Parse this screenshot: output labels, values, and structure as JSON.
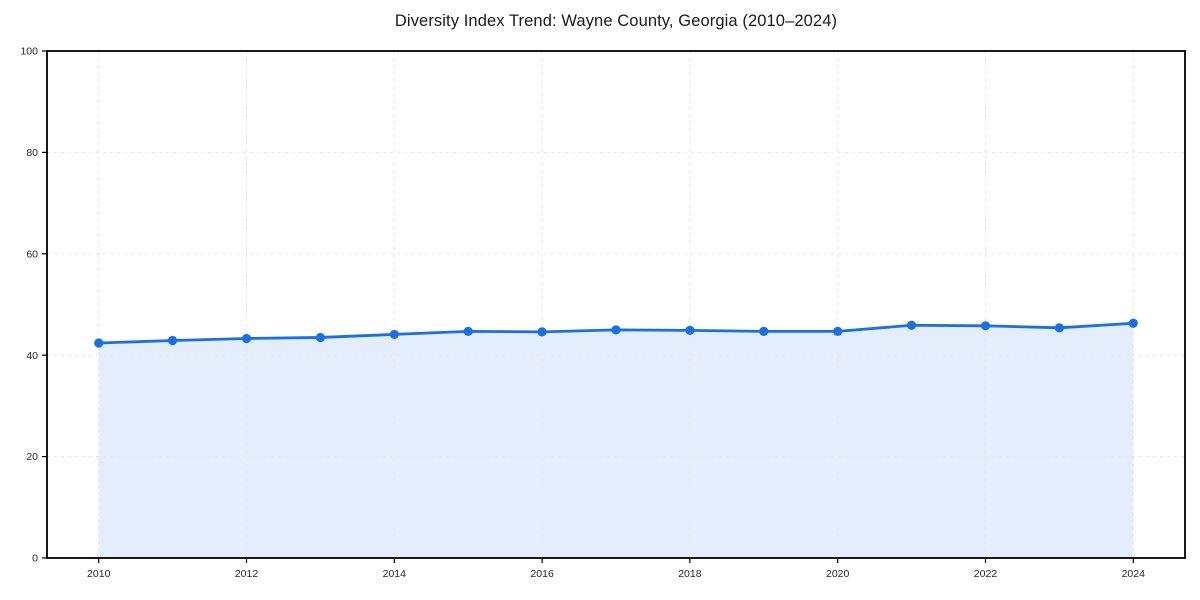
{
  "chart_data": {
    "type": "line",
    "title": "Diversity Index Trend: Wayne County, Georgia (2010–2024)",
    "xlabel": "",
    "ylabel": "",
    "x": [
      2010,
      2011,
      2012,
      2013,
      2014,
      2015,
      2016,
      2017,
      2018,
      2019,
      2020,
      2021,
      2022,
      2023,
      2024
    ],
    "values": [
      42.4,
      42.9,
      43.3,
      43.5,
      44.1,
      44.7,
      44.6,
      45.0,
      44.9,
      44.7,
      44.7,
      45.9,
      45.8,
      45.4,
      46.3
    ],
    "area_fill": true,
    "markers": true,
    "grid": true,
    "grid_style": "dashed",
    "legend": false,
    "xlim": [
      2009.3,
      2024.7
    ],
    "ylim": [
      0,
      100
    ],
    "xticks": [
      2010,
      2012,
      2014,
      2016,
      2018,
      2020,
      2022,
      2024
    ],
    "yticks": [
      0,
      20,
      40,
      60,
      80,
      100
    ],
    "colors": {
      "line": "#1a6fe3",
      "marker": "#1a6fe3",
      "fill": "#e4edfc",
      "grid": "#e7e7e7",
      "axis": "#000000",
      "title_text": "#1a1a1a",
      "tick_text": "#262626",
      "background": "#ffffff"
    }
  }
}
